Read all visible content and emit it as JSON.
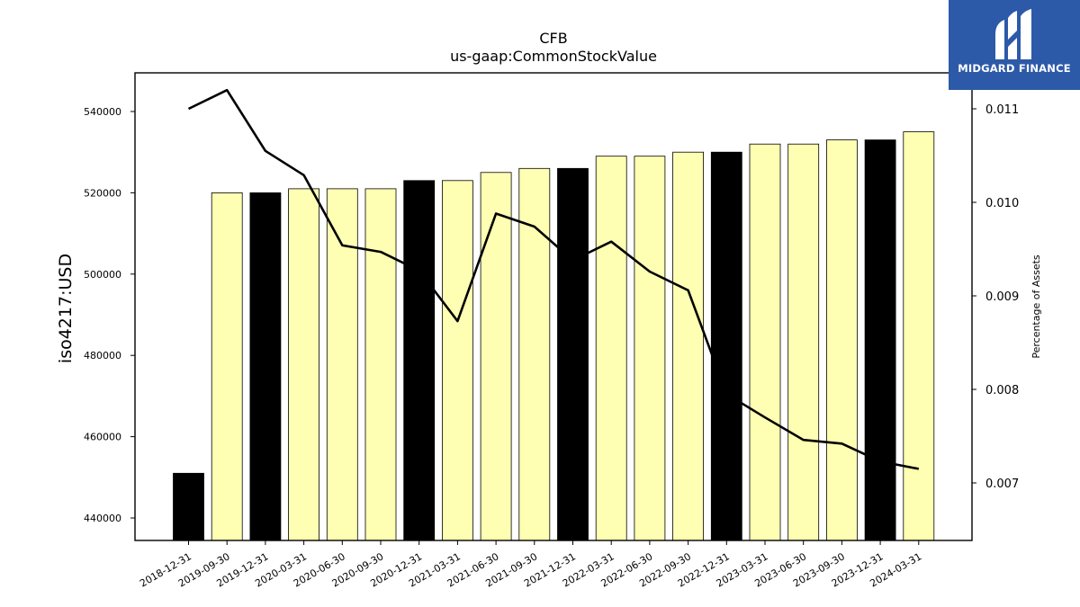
{
  "brand": {
    "name": "MIDGARD FINANCE",
    "logo_icon": "midgard-m-logo-icon",
    "background_color": "#2d5aa8"
  },
  "chart_data": {
    "type": "bar",
    "title": "CFB",
    "subtitle": "us-gaap:CommonStockValue",
    "ylabel": "iso4217:USD",
    "y2label": "Percentage of Assets",
    "ylim": [
      435000,
      550000
    ],
    "y2lim": [
      0.00635,
      0.01135
    ],
    "yticks": [
      440000,
      460000,
      480000,
      500000,
      520000,
      540000
    ],
    "y2ticks": [
      "0.007",
      "0.008",
      "0.009",
      "0.010",
      "0.011"
    ],
    "grid": false,
    "legend": "none",
    "categories": [
      "2018-12-31",
      "2019-09-30",
      "2019-12-31",
      "2020-03-31",
      "2020-06-30",
      "2020-09-30",
      "2020-12-31",
      "2021-03-31",
      "2021-06-30",
      "2021-09-30",
      "2021-12-31",
      "2022-03-31",
      "2022-06-30",
      "2022-09-30",
      "2022-12-31",
      "2023-03-31",
      "2023-06-30",
      "2023-09-30",
      "2023-12-31",
      "2024-03-31"
    ],
    "values": [
      451000,
      520000,
      520000,
      521000,
      521000,
      521000,
      523000,
      523000,
      525000,
      526000,
      526000,
      529000,
      529000,
      530000,
      530000,
      532000,
      532000,
      533000,
      533000,
      535000
    ],
    "bar_colors": [
      "#000000",
      "#ffffb3",
      "#000000",
      "#ffffb3",
      "#ffffb3",
      "#ffffb3",
      "#000000",
      "#ffffb3",
      "#ffffb3",
      "#ffffb3",
      "#000000",
      "#ffffb3",
      "#ffffb3",
      "#ffffb3",
      "#000000",
      "#ffffb3",
      "#ffffb3",
      "#ffffb3",
      "#000000",
      "#ffffb3"
    ],
    "line_values": [
      0.011,
      0.0112,
      0.01055,
      0.01029,
      0.00954,
      0.00947,
      0.00927,
      0.00873,
      0.00988,
      0.00974,
      0.00938,
      0.00958,
      0.00926,
      0.00906,
      0.00795,
      0.0077,
      0.00746,
      0.00742,
      0.00723,
      0.00715
    ],
    "line_color": "#000000"
  }
}
